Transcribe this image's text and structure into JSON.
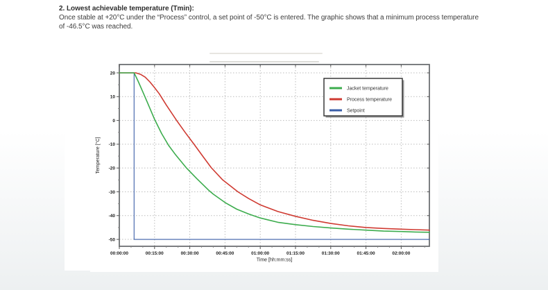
{
  "page": {
    "heading": "2. Lowest achievable temperature (Tmin):",
    "body_line1": "Once stable at +20°C under the “Process” control, a set point of -50°C is entered. The graphic shows that a minimum process temperature",
    "body_line2": "of -46.5°C was reached."
  },
  "chart_data": {
    "type": "line",
    "title": "",
    "xlabel": "Time [hh:mm:ss]",
    "ylabel": "Temperature [°C]",
    "xlim": [
      0,
      132
    ],
    "ylim": [
      -52.9,
      23.5
    ],
    "grid": "dotted",
    "x_ticks": {
      "minutes": [
        0,
        15,
        30,
        45,
        60,
        75,
        90,
        105,
        120
      ],
      "labels": [
        "00:00:00",
        "00:15:00",
        "00:30:00",
        "00:45:00",
        "01:00:00",
        "01:15:00",
        "01:30:00",
        "01:45:00",
        "02:00:00"
      ]
    },
    "y_ticks": [
      20,
      10,
      0,
      -10,
      -20,
      -30,
      -40,
      -50
    ],
    "legend": {
      "position": "upper-right",
      "items": [
        {
          "label": "Jacket temperature",
          "color": "#3cac4d"
        },
        {
          "label": "Process temperature",
          "color": "#cf3a31"
        },
        {
          "label": "Setpoint",
          "color": "#3a5ea8"
        }
      ]
    },
    "series": [
      {
        "name": "Setpoint",
        "color": "#3a5ea8",
        "width": 1.1,
        "points": [
          [
            0,
            20
          ],
          [
            6.3,
            20
          ],
          [
            6.3,
            -50
          ],
          [
            132,
            -50
          ]
        ]
      },
      {
        "name": "Process temperature",
        "color": "#cf3a31",
        "width": 1.6,
        "points": [
          [
            0,
            20
          ],
          [
            7,
            20
          ],
          [
            9,
            19.4
          ],
          [
            11,
            18.2
          ],
          [
            13,
            16.2
          ],
          [
            15,
            13.8
          ],
          [
            17,
            11.2
          ],
          [
            20,
            6.5
          ],
          [
            24.4,
            0
          ],
          [
            28,
            -5
          ],
          [
            31.8,
            -10
          ],
          [
            35.5,
            -15
          ],
          [
            39.1,
            -19.8
          ],
          [
            44,
            -25
          ],
          [
            50.5,
            -30
          ],
          [
            55,
            -32.8
          ],
          [
            60,
            -35.5
          ],
          [
            67.5,
            -38.3
          ],
          [
            75,
            -40.3
          ],
          [
            82.5,
            -42
          ],
          [
            90,
            -43.3
          ],
          [
            97.5,
            -44.3
          ],
          [
            105,
            -45
          ],
          [
            112.5,
            -45.4
          ],
          [
            120,
            -45.7
          ],
          [
            126,
            -45.9
          ],
          [
            132,
            -46.1
          ]
        ]
      },
      {
        "name": "Jacket temperature",
        "color": "#3cac4d",
        "width": 1.6,
        "points": [
          [
            0,
            20
          ],
          [
            6.3,
            20
          ],
          [
            8,
            16.5
          ],
          [
            10,
            12
          ],
          [
            12,
            7.5
          ],
          [
            15,
            0.5
          ],
          [
            18,
            -5.5
          ],
          [
            21,
            -10.5
          ],
          [
            24,
            -14.5
          ],
          [
            28.6,
            -20
          ],
          [
            33,
            -24.5
          ],
          [
            38,
            -29.3
          ],
          [
            40,
            -31
          ],
          [
            45,
            -34.5
          ],
          [
            50,
            -37.3
          ],
          [
            55,
            -39.3
          ],
          [
            60,
            -41
          ],
          [
            67.5,
            -42.8
          ],
          [
            75,
            -43.8
          ],
          [
            82.5,
            -44.6
          ],
          [
            90,
            -45.2
          ],
          [
            97.5,
            -45.7
          ],
          [
            105,
            -46.1
          ],
          [
            112.5,
            -46.5
          ],
          [
            120,
            -46.7
          ],
          [
            126,
            -46.9
          ],
          [
            132,
            -47
          ]
        ]
      }
    ]
  }
}
